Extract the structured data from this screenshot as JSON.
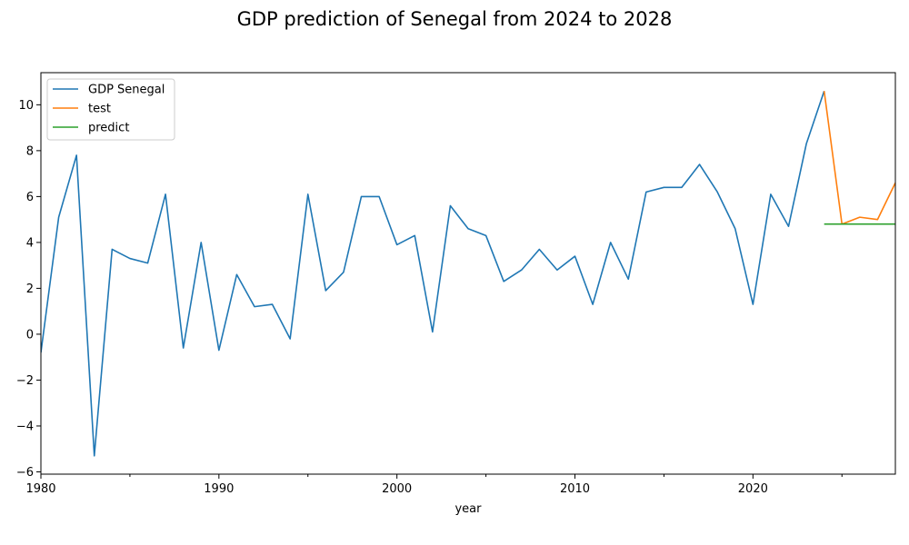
{
  "chart_data": {
    "type": "line",
    "title": "GDP prediction of Senegal from 2024 to 2028",
    "xlabel": "year",
    "ylabel": "",
    "xlim": [
      1980,
      2028
    ],
    "ylim": [
      -6.1,
      11.4
    ],
    "xticks": [
      1980,
      1990,
      2000,
      2010,
      2020
    ],
    "xticks_minor": [
      1985,
      1995,
      2005,
      2015,
      2025
    ],
    "yticks": [
      -6,
      -4,
      -2,
      0,
      2,
      4,
      6,
      8,
      10
    ],
    "legend_position": "top-left",
    "grid": false,
    "series": [
      {
        "name": "GDP Senegal",
        "color": "#1f77b4",
        "x": [
          1980,
          1981,
          1982,
          1983,
          1984,
          1985,
          1986,
          1987,
          1988,
          1989,
          1990,
          1991,
          1992,
          1993,
          1994,
          1995,
          1996,
          1997,
          1998,
          1999,
          2000,
          2001,
          2002,
          2003,
          2004,
          2005,
          2006,
          2007,
          2008,
          2009,
          2010,
          2011,
          2012,
          2013,
          2014,
          2015,
          2016,
          2017,
          2018,
          2019,
          2020,
          2021,
          2022,
          2023,
          2024
        ],
        "values": [
          -0.8,
          5.1,
          7.8,
          -5.3,
          3.7,
          3.3,
          3.1,
          6.1,
          -0.6,
          4.0,
          -0.7,
          2.6,
          1.2,
          1.3,
          -0.2,
          6.1,
          1.9,
          2.7,
          6.0,
          6.0,
          3.9,
          4.3,
          0.1,
          5.6,
          4.6,
          4.3,
          2.3,
          2.8,
          3.7,
          2.8,
          3.4,
          1.3,
          4.0,
          2.4,
          6.2,
          6.4,
          6.4,
          7.4,
          6.2,
          4.6,
          1.3,
          6.1,
          4.7,
          8.3,
          10.6
        ]
      },
      {
        "name": "test",
        "color": "#ff7f0e",
        "x": [
          2024,
          2025,
          2026,
          2027,
          2028
        ],
        "values": [
          10.6,
          4.8,
          5.1,
          5.0,
          6.6
        ]
      },
      {
        "name": "predict",
        "color": "#2ca02c",
        "x": [
          2024,
          2025,
          2026,
          2027,
          2028
        ],
        "values": [
          4.8,
          4.8,
          4.8,
          4.8,
          4.8
        ]
      }
    ]
  }
}
